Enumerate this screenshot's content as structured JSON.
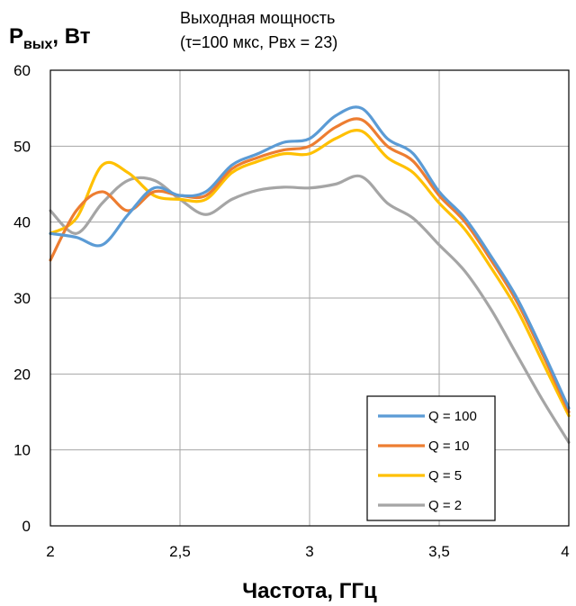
{
  "chart_data": {
    "type": "line",
    "title_line1": "Выходная мощность",
    "title_line2": "(τ=100 мкс, Рвх = 23)",
    "ylabel_main": "P",
    "ylabel_sub": "вых",
    "ylabel_unit": ", Вт",
    "xlabel": "Частота, ГГц",
    "xlim": [
      2,
      4
    ],
    "ylim": [
      0,
      60
    ],
    "xticks": [
      2,
      2.5,
      3,
      3.5,
      4
    ],
    "xtick_labels": [
      "2",
      "2,5",
      "3",
      "3,5",
      "4"
    ],
    "yticks": [
      0,
      10,
      20,
      30,
      40,
      50,
      60
    ],
    "ytick_labels": [
      "0",
      "10",
      "20",
      "30",
      "40",
      "50",
      "60"
    ],
    "grid": true,
    "legend_position": "bottom-right",
    "series": [
      {
        "name": "Q = 100",
        "color": "#5b9bd5",
        "x": [
          2.0,
          2.1,
          2.2,
          2.3,
          2.4,
          2.5,
          2.6,
          2.7,
          2.8,
          2.9,
          3.0,
          3.1,
          3.2,
          3.3,
          3.4,
          3.5,
          3.6,
          3.7,
          3.8,
          3.9,
          4.0
        ],
        "y": [
          38.5,
          38.0,
          37.0,
          41.0,
          44.5,
          43.5,
          44.0,
          47.5,
          49.0,
          50.5,
          51.0,
          54.0,
          55.0,
          51.0,
          49.0,
          44.0,
          40.5,
          35.5,
          30.0,
          23.0,
          15.5
        ]
      },
      {
        "name": "Q = 10",
        "color": "#ed7d31",
        "x": [
          2.0,
          2.1,
          2.2,
          2.3,
          2.4,
          2.5,
          2.6,
          2.7,
          2.8,
          2.9,
          3.0,
          3.1,
          3.2,
          3.3,
          3.4,
          3.5,
          3.6,
          3.7,
          3.8,
          3.9,
          4.0
        ],
        "y": [
          35.0,
          41.5,
          44.0,
          41.5,
          44.0,
          43.5,
          43.5,
          47.0,
          48.5,
          49.5,
          50.0,
          52.5,
          53.5,
          50.0,
          48.0,
          43.5,
          40.0,
          35.0,
          29.5,
          22.5,
          15.0
        ]
      },
      {
        "name": "Q = 5",
        "color": "#ffc000",
        "x": [
          2.0,
          2.1,
          2.2,
          2.3,
          2.4,
          2.5,
          2.6,
          2.7,
          2.8,
          2.9,
          3.0,
          3.1,
          3.2,
          3.3,
          3.4,
          3.5,
          3.6,
          3.7,
          3.8,
          3.9,
          4.0
        ],
        "y": [
          38.5,
          40.5,
          47.5,
          46.5,
          43.5,
          43.0,
          43.0,
          46.5,
          48.0,
          49.0,
          49.0,
          51.0,
          52.0,
          48.5,
          46.5,
          42.5,
          39.0,
          34.0,
          28.5,
          21.5,
          14.5
        ]
      },
      {
        "name": "Q = 2",
        "color": "#a5a5a5",
        "x": [
          2.0,
          2.1,
          2.2,
          2.3,
          2.4,
          2.5,
          2.6,
          2.7,
          2.8,
          2.9,
          3.0,
          3.1,
          3.2,
          3.3,
          3.4,
          3.5,
          3.6,
          3.7,
          3.8,
          3.9,
          4.0
        ],
        "y": [
          41.5,
          38.5,
          42.5,
          45.5,
          45.5,
          43.0,
          41.0,
          43.0,
          44.2,
          44.6,
          44.5,
          45.0,
          46.0,
          42.5,
          40.5,
          37.0,
          33.5,
          28.5,
          22.5,
          16.5,
          11.0
        ]
      }
    ]
  }
}
